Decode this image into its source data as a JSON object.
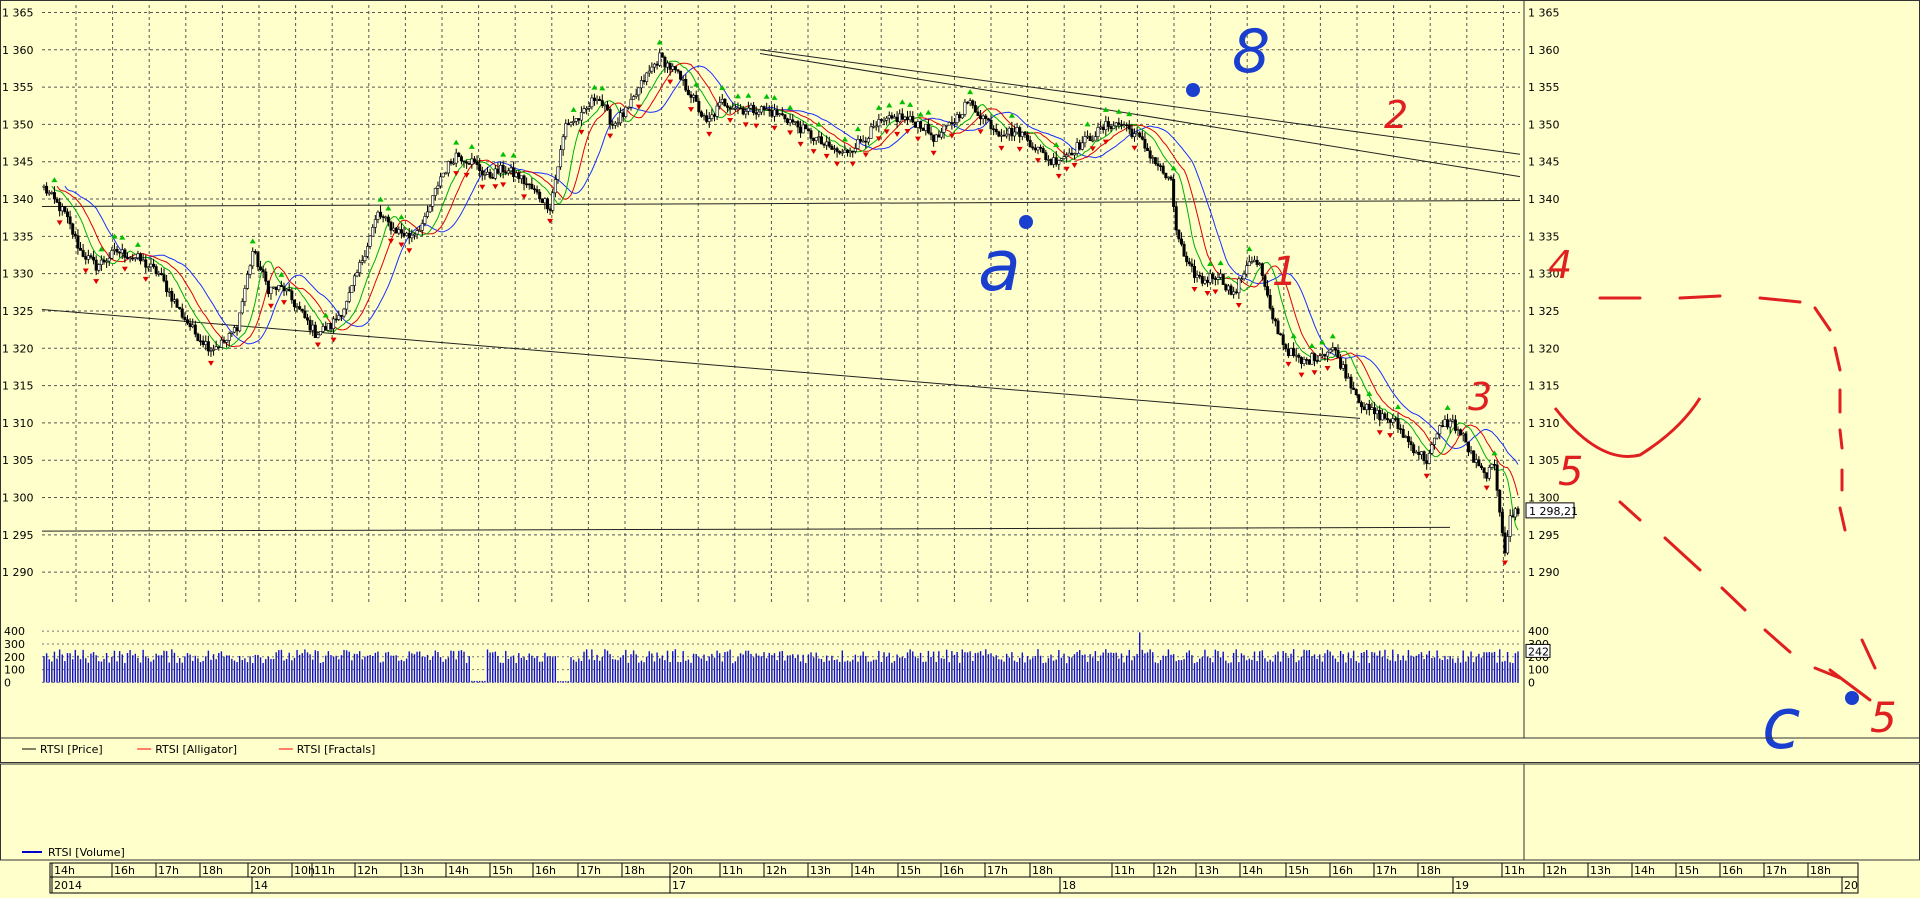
{
  "chart_data": {
    "type": "candlestick",
    "price_axis": {
      "ylim": [
        1286.0,
        1366.0
      ],
      "ticks": [
        1365,
        1360,
        1355,
        1350,
        1345,
        1340,
        1335,
        1330,
        1325,
        1320,
        1315,
        1310,
        1305,
        1300,
        1295,
        1290
      ],
      "tick_labels": [
        "1 365",
        "1 360",
        "1 355",
        "1 350",
        "1 345",
        "1 340",
        "1 335",
        "1 330",
        "1 325",
        "1 320",
        "1 315",
        "1 310",
        "1 305",
        "1 300",
        "1 295",
        "1 290"
      ],
      "last_price_label": "1 298,21",
      "last_price": 1298.21
    },
    "volume_axis": {
      "ylim": [
        -20,
        440
      ],
      "ticks": [
        400,
        300,
        200,
        100,
        0
      ],
      "tick_labels": [
        "400",
        "300",
        "200",
        "100",
        "0"
      ],
      "last_volume_label": "242",
      "last_volume": 242
    },
    "legend": [
      {
        "name": "RTSI [Price]",
        "color": "#000000"
      },
      {
        "name": "RTSI [Alligator]",
        "color": "#ff0000"
      },
      {
        "name": "RTSI [Fractals]",
        "color": "#ff0000"
      }
    ],
    "volume_legend": {
      "name": "RTSI [Volume]",
      "color": "#0000cc"
    },
    "time_axis": {
      "hour_labels": [
        "14h",
        "16h",
        "17h",
        "18h",
        "20h",
        "10h",
        "11h",
        "12h",
        "13h",
        "14h",
        "15h",
        "16h",
        "17h",
        "18h",
        "20h",
        "11h",
        "12h",
        "13h",
        "14h",
        "15h",
        "16h",
        "17h",
        "18h",
        "11h",
        "12h",
        "13h",
        "14h",
        "15h",
        "16h",
        "17h",
        "18h",
        "11h",
        "12h",
        "13h",
        "14h",
        "15h",
        "16h",
        "17h",
        "18h"
      ],
      "day_labels": [
        "2014",
        "14",
        "17",
        "18",
        "19",
        "20"
      ]
    },
    "price_path": [
      [
        0,
        1341.5
      ],
      [
        8,
        1338
      ],
      [
        14,
        1333
      ],
      [
        20,
        1331
      ],
      [
        28,
        1333
      ],
      [
        36,
        1332
      ],
      [
        44,
        1330
      ],
      [
        52,
        1325
      ],
      [
        58,
        1322
      ],
      [
        64,
        1320
      ],
      [
        70,
        1321
      ],
      [
        74,
        1323
      ],
      [
        80,
        1333
      ],
      [
        86,
        1328
      ],
      [
        92,
        1328
      ],
      [
        98,
        1325
      ],
      [
        104,
        1322
      ],
      [
        110,
        1323
      ],
      [
        116,
        1326
      ],
      [
        122,
        1332
      ],
      [
        128,
        1338
      ],
      [
        134,
        1336
      ],
      [
        140,
        1335
      ],
      [
        146,
        1337
      ],
      [
        152,
        1343
      ],
      [
        158,
        1346
      ],
      [
        164,
        1345
      ],
      [
        170,
        1343
      ],
      [
        176,
        1344
      ],
      [
        182,
        1343
      ],
      [
        188,
        1341
      ],
      [
        194,
        1339
      ],
      [
        200,
        1350
      ],
      [
        206,
        1351
      ],
      [
        212,
        1354
      ],
      [
        218,
        1350
      ],
      [
        224,
        1352
      ],
      [
        230,
        1356
      ],
      [
        236,
        1359
      ],
      [
        242,
        1357
      ],
      [
        248,
        1354
      ],
      [
        254,
        1350
      ],
      [
        260,
        1353
      ],
      [
        268,
        1352
      ],
      [
        276,
        1352
      ],
      [
        284,
        1351
      ],
      [
        292,
        1349
      ],
      [
        300,
        1347
      ],
      [
        306,
        1346
      ],
      [
        314,
        1348
      ],
      [
        320,
        1350
      ],
      [
        328,
        1351
      ],
      [
        336,
        1350
      ],
      [
        342,
        1348
      ],
      [
        350,
        1351
      ],
      [
        354,
        1353
      ],
      [
        360,
        1351
      ],
      [
        366,
        1349
      ],
      [
        374,
        1349
      ],
      [
        380,
        1347
      ],
      [
        386,
        1345
      ],
      [
        392,
        1346
      ],
      [
        400,
        1348
      ],
      [
        408,
        1350
      ],
      [
        414,
        1350
      ],
      [
        420,
        1348
      ],
      [
        426,
        1345
      ],
      [
        432,
        1342
      ],
      [
        434,
        1336
      ],
      [
        438,
        1331
      ],
      [
        444,
        1329
      ],
      [
        450,
        1330
      ],
      [
        456,
        1327
      ],
      [
        462,
        1332
      ],
      [
        466,
        1331
      ],
      [
        470,
        1325
      ],
      [
        476,
        1320
      ],
      [
        482,
        1318
      ],
      [
        488,
        1319
      ],
      [
        494,
        1320
      ],
      [
        500,
        1316
      ],
      [
        506,
        1312
      ],
      [
        512,
        1311
      ],
      [
        518,
        1310
      ],
      [
        524,
        1307
      ],
      [
        530,
        1305
      ],
      [
        536,
        1310
      ],
      [
        540,
        1310
      ],
      [
        544,
        1308
      ],
      [
        548,
        1305
      ],
      [
        552,
        1303
      ],
      [
        556,
        1304
      ],
      [
        560,
        1293
      ],
      [
        562,
        1297
      ],
      [
        564,
        1298.2
      ]
    ],
    "bar_count": 566,
    "annotations": [
      {
        "text": "a",
        "color": "#1a3fcf"
      },
      {
        "text": "8",
        "color": "#1a3fcf"
      },
      {
        "text": "c",
        "color": "#1a3fcf"
      },
      {
        "text": "1",
        "color": "#e02020"
      },
      {
        "text": "2",
        "color": "#e02020"
      },
      {
        "text": "3",
        "color": "#e02020"
      },
      {
        "text": "4",
        "color": "#e02020"
      },
      {
        "text": "5",
        "color": "#e02020"
      },
      {
        "text": "5",
        "color": "#e02020"
      }
    ]
  }
}
